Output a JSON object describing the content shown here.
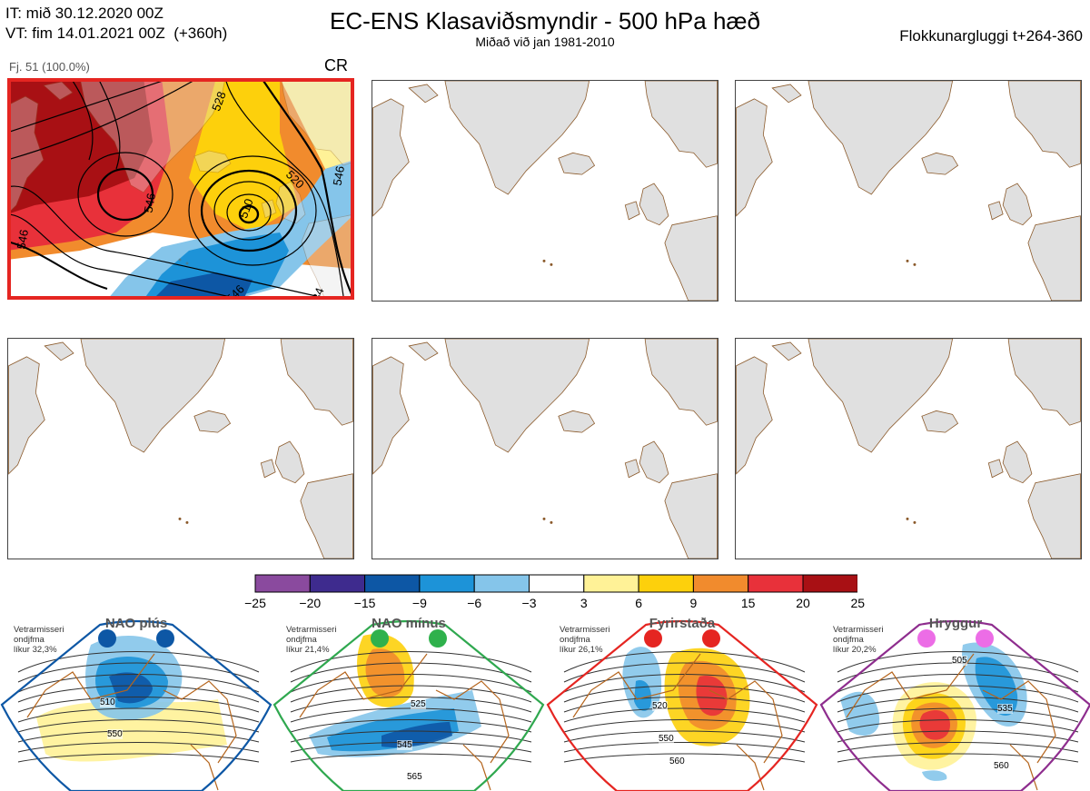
{
  "header": {
    "it_line": "IT: mið 30.12.2020 00Z",
    "vt_line": "VT: fim 14.01.2021 00Z  (+360h)",
    "title": "EC-ENS Klasaviðsmyndir - 500 hPa hæð",
    "subtitle": "Miðað við jan 1981-2010",
    "window": "Flokkunargluggi t+264-360"
  },
  "main_panel": {
    "count_label": "Fj. 51 (100.0%)",
    "regime_code": "CR",
    "contour_labels": [
      "528",
      "546",
      "510",
      "520",
      "546",
      "546",
      "546",
      "534"
    ]
  },
  "colorbar": {
    "colors": [
      "#8a4a9e",
      "#3e2b8e",
      "#0d57a5",
      "#1d93d8",
      "#85c5ea",
      "#ffffff",
      "#fff297",
      "#fdd00c",
      "#f18b2d",
      "#e8313a",
      "#a81014"
    ],
    "ticks": [
      "−25",
      "−20",
      "−15",
      "−9",
      "−6",
      "−3",
      "3",
      "6",
      "9",
      "15",
      "20",
      "25"
    ]
  },
  "regimes": [
    {
      "name": "NAO plús",
      "info": "Vetrarmisseri\nondjfma\nlíkur 32,3%",
      "color": "#0d57a5",
      "dot": "#0d57a5",
      "labels": [
        "510",
        "550"
      ]
    },
    {
      "name": "NAO mínus",
      "info": "Vetrarmisseri\nondjfma\nlíkur 21,4%",
      "color": "#2fa84f",
      "dot": "#2fb14c",
      "labels": [
        "525",
        "545",
        "565"
      ]
    },
    {
      "name": "Fyrirstaða",
      "info": "Vetrarmisseri\nondjfma\nlíkur 26,1%",
      "color": "#e52521",
      "dot": "#e52521",
      "labels": [
        "520",
        "550",
        "560"
      ]
    },
    {
      "name": "Hryggur",
      "info": "Vetrarmisseri\nondjfma\nlíkur 20,2%",
      "color": "#8e2d8e",
      "dot": "#ec6de6",
      "labels": [
        "505",
        "535",
        "560"
      ]
    }
  ]
}
